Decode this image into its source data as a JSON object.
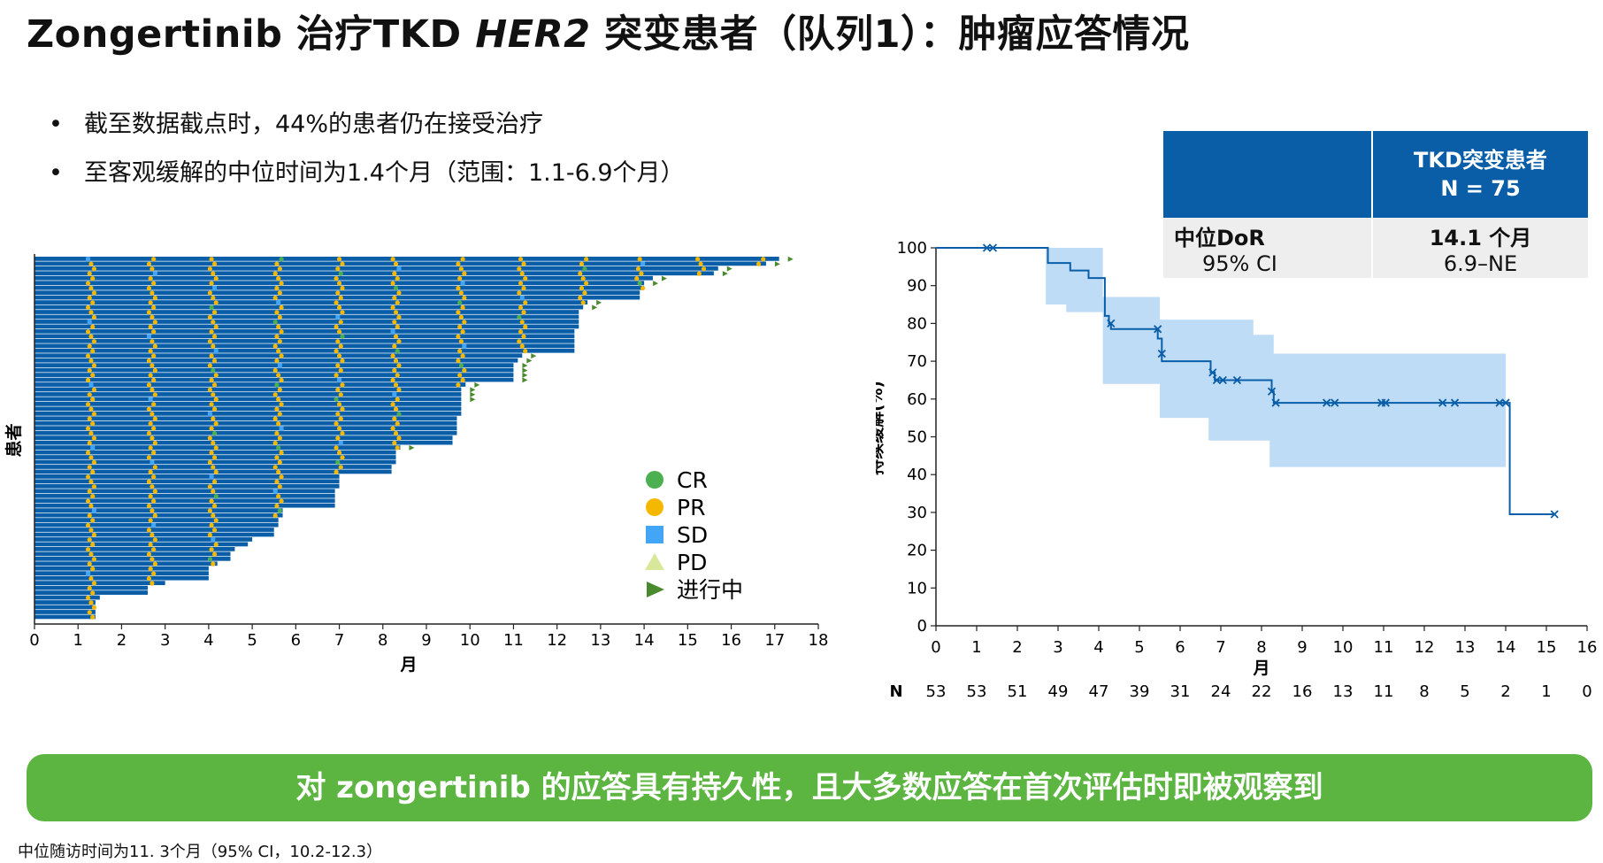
{
  "title": {
    "prefix": "Zongertinib 治疗TKD ",
    "italic": "HER2",
    "suffix": " 突变患者（队列1）：肿瘤应答情况"
  },
  "bullets": [
    "截至数据截点时，44%的患者仍在接受治疗",
    "至客观缓解的中位时间为1.4个月（范围：1.1-6.9个月）"
  ],
  "dor_table": {
    "header_col2_line1": "TKD突变患者",
    "header_col2_line2": "N = 75",
    "row1_label": "中位DoR",
    "row1_value": "14.1 个月",
    "row2_label": "95% CI",
    "row2_value": "6.9–NE"
  },
  "key_message": "对 zongertinib 的应答具有持久性，且大多数应答在首次评估时即被观察到",
  "footnote": "中位随访时间为11. 3个月（95% CI，10.2-12.3）",
  "colors": {
    "bar": "#0a5ea8",
    "cr": "#4caf50",
    "pr": "#f5b800",
    "sd": "#42a5f5",
    "pd": "#d8e89a",
    "ongoing": "#4a8a2e",
    "ci_band": "#bfdcf7",
    "km_line": "#0a5ea8",
    "key_message_bg": "#5cb541"
  },
  "chart_data": [
    {
      "type": "swimmer",
      "xlabel": "月",
      "ylabel": "患者",
      "xlim": [
        0,
        18
      ],
      "xticks": [
        "0",
        "1",
        "2",
        "3",
        "4",
        "5",
        "6",
        "7",
        "8",
        "9",
        "10",
        "11",
        "12",
        "13",
        "14",
        "15",
        "16",
        "17",
        "18"
      ],
      "legend_position": "right",
      "legend": [
        {
          "key": "cr",
          "label": "CR",
          "shape": "circle"
        },
        {
          "key": "pr",
          "label": "PR",
          "shape": "circle"
        },
        {
          "key": "sd",
          "label": "SD",
          "shape": "square"
        },
        {
          "key": "pd",
          "label": "PD",
          "shape": "triangle"
        },
        {
          "key": "ongoing",
          "label": "进行中",
          "shape": "arrow"
        }
      ],
      "durations_months": [
        17.1,
        16.8,
        15.7,
        15.6,
        14.2,
        14.0,
        14.0,
        13.9,
        13.9,
        12.7,
        12.6,
        12.5,
        12.5,
        12.5,
        12.5,
        12.4,
        12.4,
        12.4,
        12.4,
        12.4,
        11.2,
        11.1,
        11.0,
        11.0,
        11.0,
        11.0,
        9.9,
        9.8,
        9.8,
        9.8,
        9.8,
        9.8,
        9.8,
        9.7,
        9.7,
        9.7,
        9.7,
        9.6,
        9.6,
        8.4,
        8.3,
        8.3,
        8.3,
        8.2,
        8.2,
        7.0,
        7.0,
        7.0,
        6.9,
        6.9,
        6.9,
        6.9,
        5.7,
        5.7,
        5.6,
        5.6,
        5.5,
        5.5,
        5.0,
        4.9,
        4.6,
        4.5,
        4.5,
        4.2,
        4.0,
        4.0,
        4.0,
        3.0,
        2.6,
        2.6,
        1.5,
        1.4,
        1.4,
        1.4,
        1.4
      ],
      "ongoing": [
        true,
        true,
        true,
        true,
        true,
        true,
        false,
        false,
        false,
        true,
        true,
        false,
        false,
        false,
        false,
        false,
        false,
        false,
        false,
        false,
        true,
        true,
        true,
        true,
        true,
        true,
        true,
        true,
        true,
        true,
        false,
        false,
        false,
        false,
        false,
        false,
        false,
        false,
        false,
        true,
        false,
        false,
        false,
        false,
        false,
        false,
        false,
        false,
        false,
        false,
        false,
        false,
        false,
        false,
        false,
        false,
        false,
        false,
        false,
        false,
        false,
        false,
        false,
        false,
        false,
        false,
        false,
        false,
        false,
        false,
        false,
        false,
        false,
        false,
        false
      ],
      "assessment_months": [
        1.3,
        2.7,
        4.1,
        5.6,
        7.0,
        8.3,
        9.8,
        11.2,
        12.6,
        13.9,
        15.3,
        16.7
      ]
    },
    {
      "type": "line",
      "subtype": "kaplan-meier",
      "xlabel": "月",
      "ylabel": "持续缓解(%)",
      "xlim": [
        0,
        16
      ],
      "ylim": [
        0,
        100
      ],
      "xticks": [
        "0",
        "1",
        "2",
        "3",
        "4",
        "5",
        "6",
        "7",
        "8",
        "9",
        "10",
        "11",
        "12",
        "13",
        "14",
        "15",
        "16"
      ],
      "yticks": [
        "0",
        "10",
        "20",
        "30",
        "40",
        "50",
        "60",
        "70",
        "80",
        "90",
        "100"
      ],
      "km_steps": [
        [
          0,
          100
        ],
        [
          2.75,
          100
        ],
        [
          2.75,
          96
        ],
        [
          3.3,
          96
        ],
        [
          3.3,
          94
        ],
        [
          3.75,
          94
        ],
        [
          3.75,
          92
        ],
        [
          4.15,
          92
        ],
        [
          4.15,
          82
        ],
        [
          4.25,
          82
        ],
        [
          4.25,
          80
        ],
        [
          4.3,
          80
        ],
        [
          4.3,
          78.5
        ],
        [
          5.45,
          78.5
        ],
        [
          5.45,
          76
        ],
        [
          5.55,
          76
        ],
        [
          5.55,
          70
        ],
        [
          6.75,
          70
        ],
        [
          6.75,
          67
        ],
        [
          6.85,
          67
        ],
        [
          6.85,
          65
        ],
        [
          8.25,
          65
        ],
        [
          8.25,
          62
        ],
        [
          8.3,
          62
        ],
        [
          8.3,
          59
        ],
        [
          14.1,
          59
        ],
        [
          14.1,
          29.5
        ],
        [
          15.2,
          29.5
        ]
      ],
      "ci_upper": [
        [
          2.7,
          100
        ],
        [
          4.1,
          100
        ],
        [
          4.1,
          87
        ],
        [
          5.5,
          87
        ],
        [
          5.5,
          81
        ],
        [
          7.8,
          81
        ],
        [
          7.8,
          77
        ],
        [
          8.3,
          77
        ],
        [
          8.3,
          72
        ],
        [
          14,
          72
        ]
      ],
      "ci_lower": [
        [
          2.7,
          85
        ],
        [
          3.2,
          85
        ],
        [
          3.2,
          83
        ],
        [
          4.1,
          83
        ],
        [
          4.1,
          64
        ],
        [
          5.5,
          64
        ],
        [
          5.5,
          55
        ],
        [
          6.7,
          55
        ],
        [
          6.7,
          49
        ],
        [
          8.2,
          49
        ],
        [
          8.2,
          42
        ],
        [
          14,
          42
        ]
      ],
      "censor_marks": [
        [
          1.25,
          100
        ],
        [
          1.4,
          100
        ],
        [
          4.3,
          80
        ],
        [
          5.45,
          78.5
        ],
        [
          5.55,
          72
        ],
        [
          6.8,
          67
        ],
        [
          6.9,
          65
        ],
        [
          7.05,
          65
        ],
        [
          7.4,
          65
        ],
        [
          8.25,
          62
        ],
        [
          8.35,
          59
        ],
        [
          9.6,
          59
        ],
        [
          9.8,
          59
        ],
        [
          10.95,
          59
        ],
        [
          11.05,
          59
        ],
        [
          12.45,
          59
        ],
        [
          12.75,
          59
        ],
        [
          13.85,
          59
        ],
        [
          14.0,
          59
        ],
        [
          15.2,
          29.5
        ]
      ],
      "at_risk": {
        "label": "N",
        "times": [
          0,
          1,
          2,
          3,
          4,
          5,
          6,
          7,
          8,
          9,
          10,
          11,
          12,
          13,
          14,
          15,
          16
        ],
        "values": [
          "53",
          "53",
          "51",
          "49",
          "47",
          "39",
          "31",
          "24",
          "22",
          "16",
          "13",
          "11",
          "8",
          "5",
          "2",
          "1",
          "0"
        ]
      }
    }
  ]
}
